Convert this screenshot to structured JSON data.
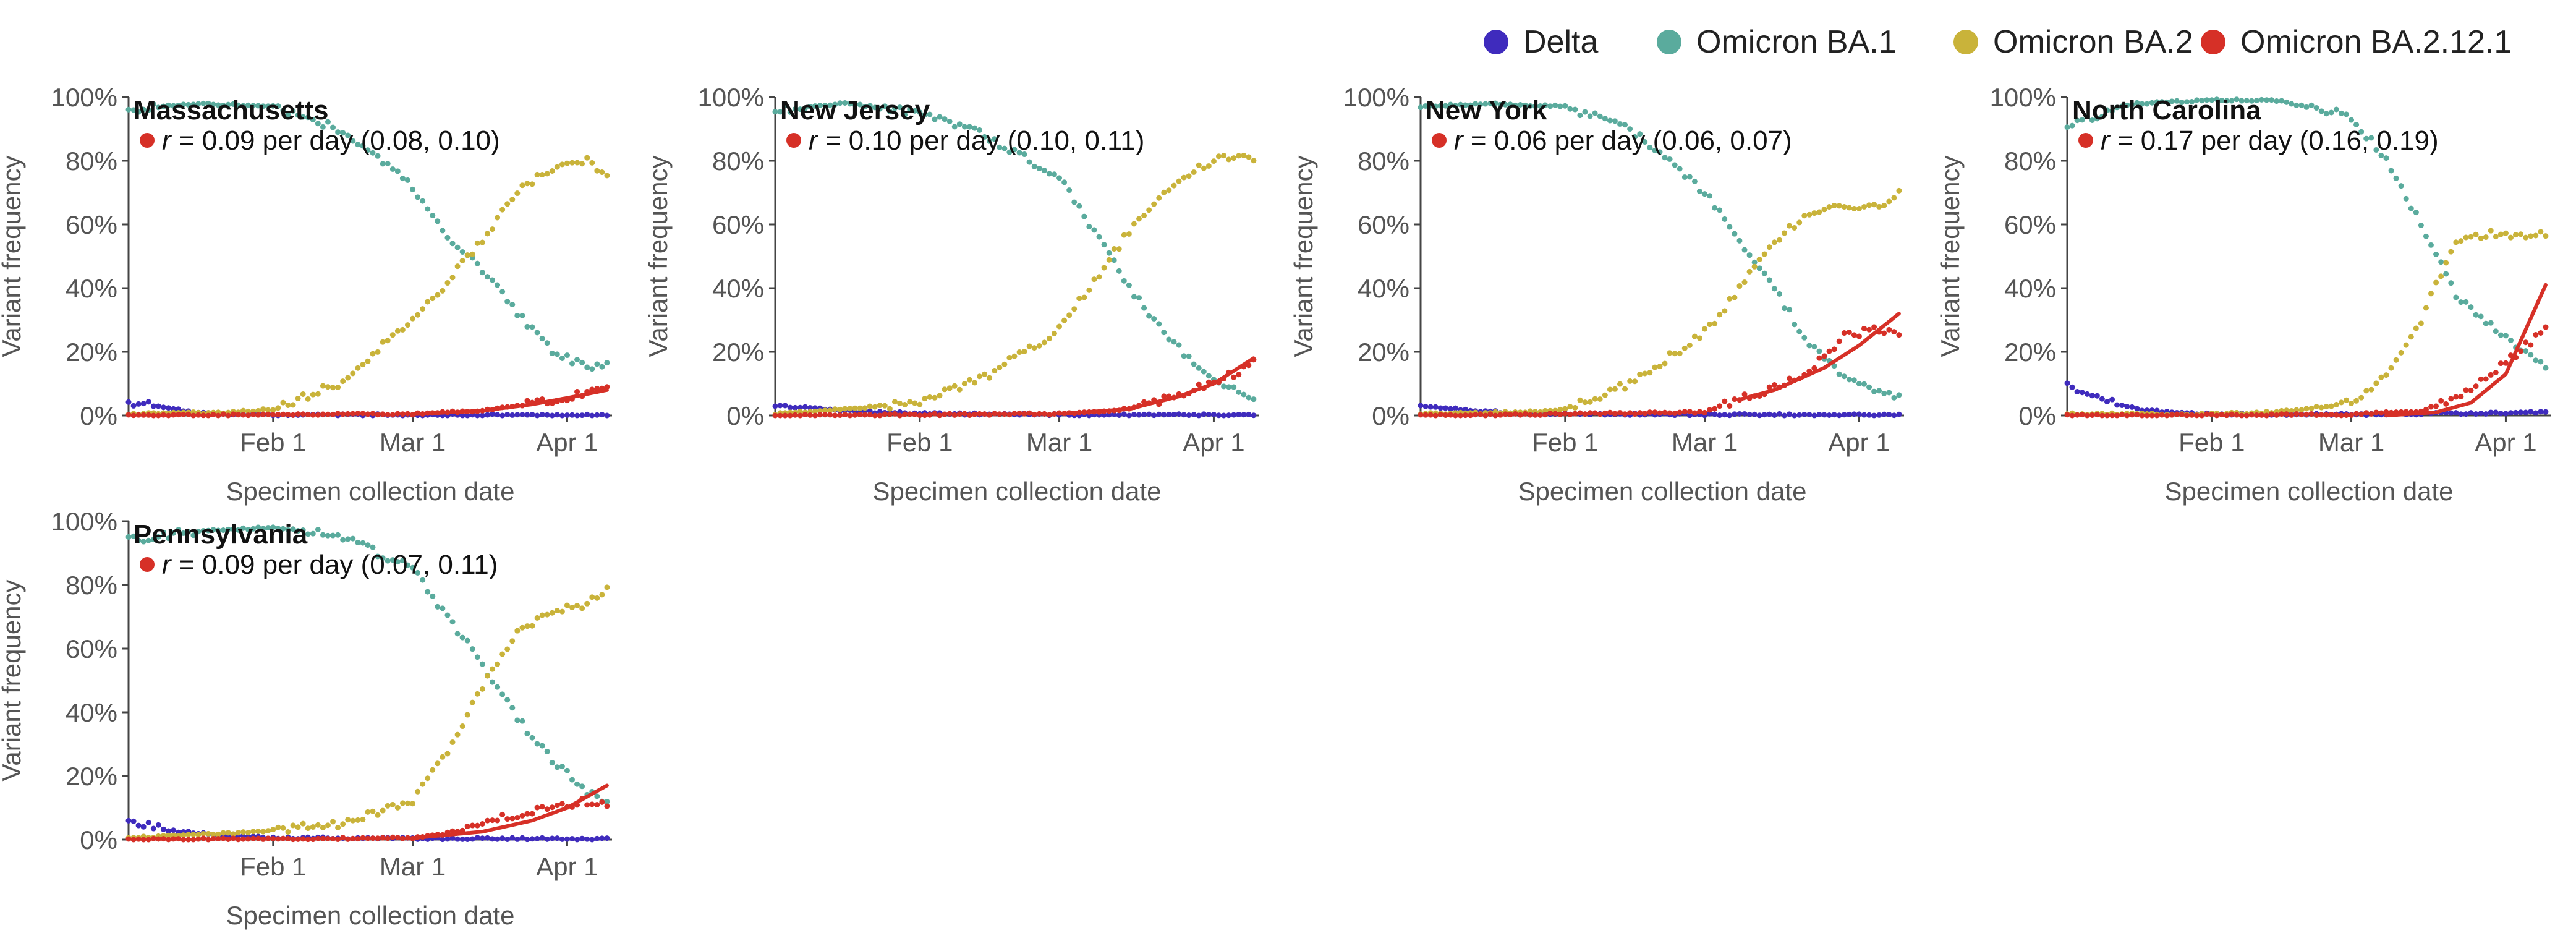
{
  "legend": [
    {
      "name": "Delta",
      "color": "#3f2bbd"
    },
    {
      "name": "Omicron BA.1",
      "color": "#5aab9d"
    },
    {
      "name": "Omicron BA.2",
      "color": "#c9b33a"
    },
    {
      "name": "Omicron BA.2.12.1",
      "color": "#d63027"
    }
  ],
  "chart_data": [
    {
      "type": "scatter",
      "title": "Massachusetts",
      "annotation": {
        "prefix": "r",
        "text": " = 0.09 per day (0.08, 0.10)"
      },
      "xlabel": "Specimen collection date",
      "ylabel": "Variant frequency",
      "x_ticks": [
        "Feb 1",
        "Mar 1",
        "Apr 1"
      ],
      "y_ticks": [
        "0%",
        "20%",
        "40%",
        "60%",
        "80%",
        "100%"
      ],
      "xlim": [
        "2022-01-03",
        "2022-04-10"
      ],
      "ylim": [
        0,
        100
      ],
      "series": [
        {
          "name": "Delta",
          "x": [
            "2022-01-03",
            "2022-01-10",
            "2022-01-17",
            "2022-01-24",
            "2022-02-01",
            "2022-03-01",
            "2022-04-09"
          ],
          "y": [
            4,
            2.5,
            1,
            0.5,
            0.3,
            0.2,
            0.1
          ]
        },
        {
          "name": "Omicron BA.1",
          "x": [
            "2022-01-03",
            "2022-01-17",
            "2022-02-01",
            "2022-02-14",
            "2022-03-01",
            "2022-03-08",
            "2022-03-15",
            "2022-03-22",
            "2022-03-29",
            "2022-04-05",
            "2022-04-09"
          ],
          "y": [
            96,
            98,
            97,
            90,
            72,
            56,
            46,
            32,
            20,
            15,
            17
          ]
        },
        {
          "name": "Omicron BA.2",
          "x": [
            "2022-01-03",
            "2022-01-24",
            "2022-02-01",
            "2022-02-14",
            "2022-03-01",
            "2022-03-08",
            "2022-03-15",
            "2022-03-22",
            "2022-03-29",
            "2022-04-05",
            "2022-04-09"
          ],
          "y": [
            0.5,
            1,
            2,
            10,
            30,
            42,
            55,
            70,
            78,
            80,
            76
          ]
        },
        {
          "name": "Omicron BA.2.12.1",
          "x": [
            "2022-01-03",
            "2022-03-01",
            "2022-03-15",
            "2022-03-22",
            "2022-03-29",
            "2022-04-05",
            "2022-04-09"
          ],
          "y": [
            0,
            0.5,
            1.5,
            3,
            5,
            7,
            8
          ]
        }
      ],
      "fit": {
        "series": "Omicron BA.2.12.1",
        "x": [
          "2022-03-01",
          "2022-03-15",
          "2022-03-25",
          "2022-04-01",
          "2022-04-09"
        ],
        "y": [
          0.4,
          1.5,
          3.5,
          5.5,
          8
        ]
      }
    },
    {
      "type": "scatter",
      "title": "New Jersey",
      "annotation": {
        "prefix": "r",
        "text": " = 0.10 per day (0.10, 0.11)"
      },
      "xlabel": "Specimen collection date",
      "ylabel": "Variant frequency",
      "x_ticks": [
        "Feb 1",
        "Mar 1",
        "Apr 1"
      ],
      "y_ticks": [
        "0%",
        "20%",
        "40%",
        "60%",
        "80%",
        "100%"
      ],
      "xlim": [
        "2022-01-03",
        "2022-04-10"
      ],
      "ylim": [
        0,
        100
      ],
      "series": [
        {
          "name": "Delta",
          "x": [
            "2022-01-03",
            "2022-01-10",
            "2022-01-17",
            "2022-01-24",
            "2022-02-01",
            "2022-03-01",
            "2022-04-09"
          ],
          "y": [
            3,
            2.5,
            1.5,
            1,
            0.6,
            0.3,
            0.1
          ]
        },
        {
          "name": "Omicron BA.1",
          "x": [
            "2022-01-03",
            "2022-01-17",
            "2022-02-01",
            "2022-02-14",
            "2022-03-01",
            "2022-03-08",
            "2022-03-15",
            "2022-03-22",
            "2022-03-29",
            "2022-04-05",
            "2022-04-09"
          ],
          "y": [
            96,
            98,
            95,
            88,
            75,
            58,
            40,
            26,
            15,
            8,
            5
          ]
        },
        {
          "name": "Omicron BA.2",
          "x": [
            "2022-01-03",
            "2022-01-17",
            "2022-02-01",
            "2022-02-14",
            "2022-03-01",
            "2022-03-08",
            "2022-03-15",
            "2022-03-22",
            "2022-03-29",
            "2022-04-05",
            "2022-04-09"
          ],
          "y": [
            0.5,
            2,
            4,
            12,
            27,
            42,
            58,
            70,
            78,
            82,
            80
          ]
        },
        {
          "name": "Omicron BA.2.12.1",
          "x": [
            "2022-01-03",
            "2022-03-01",
            "2022-03-15",
            "2022-03-22",
            "2022-03-29",
            "2022-04-05",
            "2022-04-09"
          ],
          "y": [
            0,
            0.5,
            2,
            5,
            9,
            13,
            17
          ]
        }
      ],
      "fit": {
        "series": "Omicron BA.2.12.1",
        "x": [
          "2022-03-01",
          "2022-03-15",
          "2022-03-25",
          "2022-04-01",
          "2022-04-09"
        ],
        "y": [
          0.5,
          2,
          6,
          10,
          18
        ]
      }
    },
    {
      "type": "scatter",
      "title": "New York",
      "annotation": {
        "prefix": "r",
        "text": " = 0.06 per day (0.06, 0.07)"
      },
      "xlabel": "Specimen collection date",
      "ylabel": "Variant frequency",
      "x_ticks": [
        "Feb 1",
        "Mar 1",
        "Apr 1"
      ],
      "y_ticks": [
        "0%",
        "20%",
        "40%",
        "60%",
        "80%",
        "100%"
      ],
      "xlim": [
        "2022-01-03",
        "2022-04-10"
      ],
      "ylim": [
        0,
        100
      ],
      "series": [
        {
          "name": "Delta",
          "x": [
            "2022-01-03",
            "2022-01-10",
            "2022-01-17",
            "2022-01-24",
            "2022-02-01",
            "2022-03-01",
            "2022-04-09"
          ],
          "y": [
            3,
            2,
            1.2,
            0.8,
            0.5,
            0.3,
            0.1
          ]
        },
        {
          "name": "Omicron BA.1",
          "x": [
            "2022-01-03",
            "2022-01-17",
            "2022-02-01",
            "2022-02-14",
            "2022-03-01",
            "2022-03-08",
            "2022-03-15",
            "2022-03-22",
            "2022-03-29",
            "2022-04-05",
            "2022-04-09"
          ],
          "y": [
            97,
            98,
            97,
            90,
            70,
            55,
            40,
            22,
            12,
            8,
            6
          ]
        },
        {
          "name": "Omicron BA.2",
          "x": [
            "2022-01-03",
            "2022-01-24",
            "2022-02-01",
            "2022-02-14",
            "2022-03-01",
            "2022-03-08",
            "2022-03-15",
            "2022-03-22",
            "2022-03-29",
            "2022-04-05",
            "2022-04-09"
          ],
          "y": [
            0.5,
            1,
            2,
            10,
            26,
            40,
            55,
            63,
            66,
            66,
            70
          ]
        },
        {
          "name": "Omicron BA.2.12.1",
          "x": [
            "2022-01-03",
            "2022-03-01",
            "2022-03-08",
            "2022-03-15",
            "2022-03-22",
            "2022-03-29",
            "2022-04-05",
            "2022-04-09"
          ],
          "y": [
            0,
            1,
            5,
            9,
            14,
            25,
            27,
            26
          ]
        }
      ],
      "fit": {
        "series": "Omicron BA.2.12.1",
        "x": [
          "2022-03-08",
          "2022-03-15",
          "2022-03-25",
          "2022-04-01",
          "2022-04-09"
        ],
        "y": [
          5,
          8,
          15,
          22,
          32
        ]
      }
    },
    {
      "type": "scatter",
      "title": "North Carolina",
      "annotation": {
        "prefix": "r",
        "text": " = 0.17 per day (0.16, 0.19)"
      },
      "xlabel": "Specimen collection date",
      "ylabel": "Variant frequency",
      "x_ticks": [
        "Feb 1",
        "Mar 1",
        "Apr 1"
      ],
      "y_ticks": [
        "0%",
        "20%",
        "40%",
        "60%",
        "80%",
        "100%"
      ],
      "xlim": [
        "2022-01-03",
        "2022-04-10"
      ],
      "ylim": [
        0,
        100
      ],
      "series": [
        {
          "name": "Delta",
          "x": [
            "2022-01-03",
            "2022-01-10",
            "2022-01-17",
            "2022-01-24",
            "2022-02-01",
            "2022-03-01",
            "2022-04-09"
          ],
          "y": [
            9,
            5,
            2,
            1,
            0.5,
            0.3,
            1
          ]
        },
        {
          "name": "Omicron BA.1",
          "x": [
            "2022-01-03",
            "2022-01-10",
            "2022-01-17",
            "2022-02-01",
            "2022-02-14",
            "2022-03-01",
            "2022-03-08",
            "2022-03-15",
            "2022-03-22",
            "2022-03-29",
            "2022-04-05",
            "2022-04-09"
          ],
          "y": [
            91,
            95,
            98,
            99,
            99,
            94,
            80,
            60,
            38,
            28,
            20,
            16
          ]
        },
        {
          "name": "Omicron BA.2",
          "x": [
            "2022-01-03",
            "2022-02-01",
            "2022-02-14",
            "2022-03-01",
            "2022-03-08",
            "2022-03-15",
            "2022-03-22",
            "2022-03-29",
            "2022-04-05",
            "2022-04-09"
          ],
          "y": [
            0.5,
            0.5,
            1,
            4,
            12,
            30,
            55,
            57,
            57,
            57
          ]
        },
        {
          "name": "Omicron BA.2.12.1",
          "x": [
            "2022-01-03",
            "2022-03-01",
            "2022-03-15",
            "2022-03-22",
            "2022-03-29",
            "2022-04-05",
            "2022-04-09"
          ],
          "y": [
            0,
            0.3,
            1.5,
            5,
            13,
            22,
            27
          ]
        }
      ],
      "fit": {
        "series": "Omicron BA.2.12.1",
        "x": [
          "2022-03-08",
          "2022-03-18",
          "2022-03-25",
          "2022-04-01",
          "2022-04-09"
        ],
        "y": [
          0,
          1,
          4,
          13,
          41
        ]
      }
    },
    {
      "type": "scatter",
      "title": "Pennsylvania",
      "annotation": {
        "prefix": "r",
        "text": " = 0.09 per day (0.07, 0.11)"
      },
      "xlabel": "Specimen collection date",
      "ylabel": "Variant frequency",
      "x_ticks": [
        "Feb 1",
        "Mar 1",
        "Apr 1"
      ],
      "y_ticks": [
        "0%",
        "20%",
        "40%",
        "60%",
        "80%",
        "100%"
      ],
      "xlim": [
        "2022-01-03",
        "2022-04-10"
      ],
      "ylim": [
        0,
        100
      ],
      "series": [
        {
          "name": "Delta",
          "x": [
            "2022-01-03",
            "2022-01-10",
            "2022-01-17",
            "2022-01-24",
            "2022-02-01",
            "2022-03-01",
            "2022-04-09"
          ],
          "y": [
            6,
            3,
            2,
            1,
            0.6,
            0.4,
            0.2
          ]
        },
        {
          "name": "Omicron BA.1",
          "x": [
            "2022-01-03",
            "2022-01-17",
            "2022-02-01",
            "2022-02-14",
            "2022-03-01",
            "2022-03-08",
            "2022-03-15",
            "2022-03-22",
            "2022-03-29",
            "2022-04-05",
            "2022-04-09"
          ],
          "y": [
            94,
            97,
            98,
            96,
            85,
            70,
            55,
            38,
            25,
            15,
            12
          ]
        },
        {
          "name": "Omicron BA.2",
          "x": [
            "2022-01-03",
            "2022-01-24",
            "2022-02-01",
            "2022-02-14",
            "2022-03-01",
            "2022-03-08",
            "2022-03-15",
            "2022-03-22",
            "2022-03-29",
            "2022-04-05",
            "2022-04-09"
          ],
          "y": [
            0.5,
            2,
            3,
            5,
            12,
            28,
            48,
            65,
            72,
            74,
            79
          ]
        },
        {
          "name": "Omicron BA.2.12.1",
          "x": [
            "2022-01-03",
            "2022-03-01",
            "2022-03-08",
            "2022-03-15",
            "2022-03-22",
            "2022-03-29",
            "2022-04-05",
            "2022-04-09"
          ],
          "y": [
            0,
            0.5,
            2,
            5,
            8,
            10,
            12,
            11
          ]
        }
      ],
      "fit": {
        "series": "Omicron BA.2.12.1",
        "x": [
          "2022-03-01",
          "2022-03-15",
          "2022-03-25",
          "2022-04-01",
          "2022-04-09"
        ],
        "y": [
          0.5,
          2.5,
          6,
          10,
          17
        ]
      }
    }
  ]
}
